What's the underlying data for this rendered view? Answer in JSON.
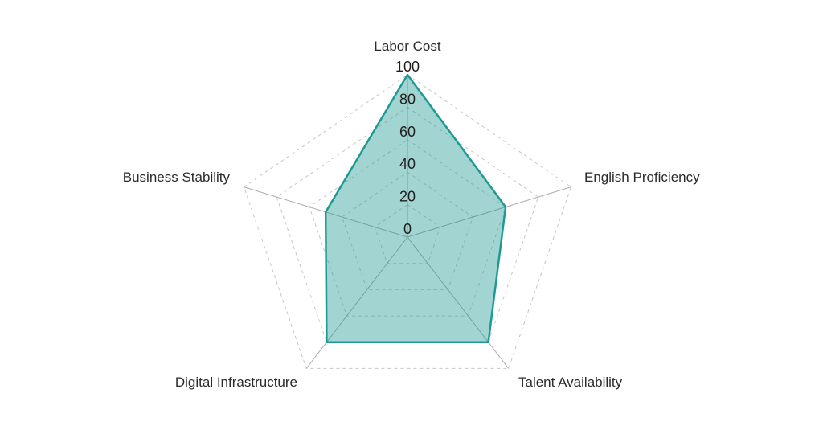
{
  "chart_data": {
    "type": "radar",
    "title": "",
    "categories": [
      "Labor Cost",
      "English Proficiency",
      "Talent Availability",
      "Digital Infrastructure",
      "Business Stability"
    ],
    "values": [
      100,
      60,
      80,
      80,
      50
    ],
    "ticks": [
      0,
      20,
      40,
      60,
      80,
      100
    ],
    "max": 100,
    "axis_range": [
      0,
      100
    ],
    "grid": "dashed pentagon rings",
    "legend_position": "none",
    "colors": {
      "fill": "rgba(33, 154, 148, 0.42)",
      "stroke": "#1e9a94",
      "ring": "#c6c6c6",
      "axis": "#ababab",
      "tick_text": "#1f1f1f",
      "label_text": "#2b2b2b",
      "background": "#ffffff"
    }
  }
}
